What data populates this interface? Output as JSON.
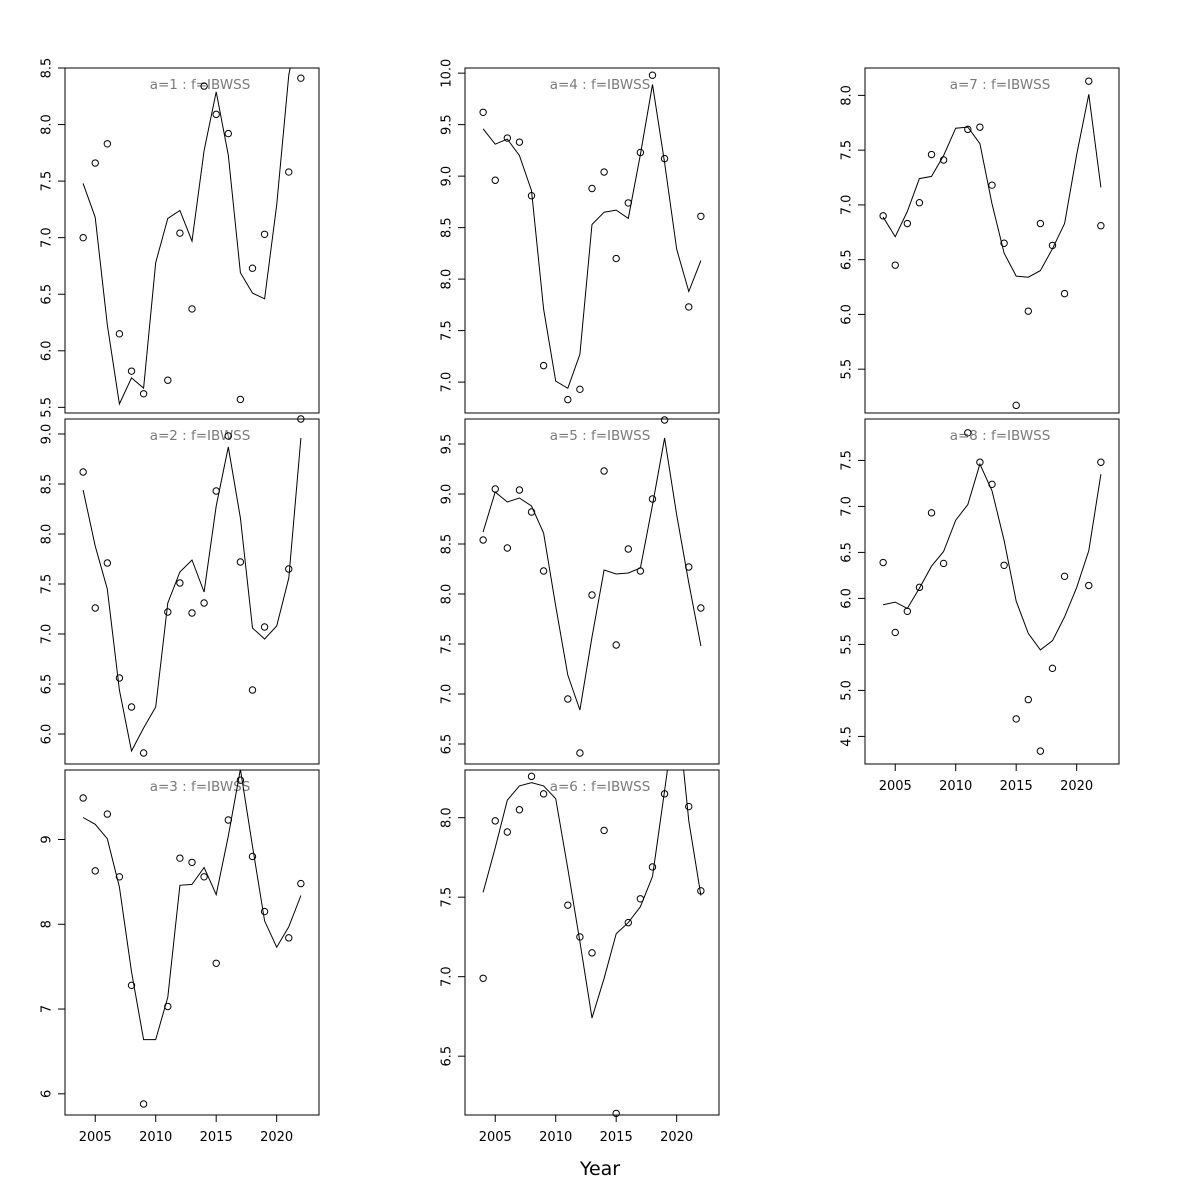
{
  "figure": {
    "xlabel": "Year"
  },
  "chart_data": [
    {
      "type": "scatter",
      "title": "a=1  :  f=IBWSS",
      "xlim": [
        2002.5,
        2023.5
      ],
      "ylim": [
        5.45,
        8.5
      ],
      "x_ticks": [],
      "y_ticks": [
        5.5,
        6.0,
        6.5,
        7.0,
        7.5,
        8.0,
        8.5
      ],
      "y_tick_labels": [
        "5.5",
        "6.0",
        "6.5",
        "7.0",
        "7.5",
        "8.0",
        "8.5"
      ],
      "x": [
        2004,
        2005,
        2006,
        2007,
        2008,
        2009,
        2010,
        2011,
        2012,
        2013,
        2014,
        2015,
        2016,
        2017,
        2018,
        2019,
        2020,
        2021,
        2022
      ],
      "points": [
        7.0,
        7.66,
        7.83,
        6.15,
        5.82,
        5.62,
        null,
        5.74,
        7.04,
        6.37,
        8.34,
        8.09,
        7.92,
        5.57,
        6.73,
        7.03,
        null,
        7.58,
        8.41
      ],
      "fitted": [
        7.48,
        7.18,
        6.23,
        5.53,
        5.76,
        5.67,
        6.78,
        7.17,
        7.24,
        6.97,
        7.77,
        8.29,
        7.73,
        6.69,
        6.51,
        6.46,
        7.29,
        8.44,
        8.98
      ]
    },
    {
      "type": "scatter",
      "title": "a=2  :  f=IBWSS",
      "xlim": [
        2002.5,
        2023.5
      ],
      "ylim": [
        5.7,
        9.15
      ],
      "x_ticks": [],
      "y_ticks": [
        6.0,
        6.5,
        7.0,
        7.5,
        8.0,
        8.5,
        9.0
      ],
      "y_tick_labels": [
        "6.0",
        "6.5",
        "7.0",
        "7.5",
        "8.0",
        "8.5",
        "9.0"
      ],
      "x": [
        2004,
        2005,
        2006,
        2007,
        2008,
        2009,
        2010,
        2011,
        2012,
        2013,
        2014,
        2015,
        2016,
        2017,
        2018,
        2019,
        2020,
        2021,
        2022
      ],
      "points": [
        8.62,
        7.26,
        7.71,
        6.56,
        6.27,
        5.81,
        null,
        7.22,
        7.51,
        7.21,
        7.31,
        8.43,
        8.98,
        7.72,
        6.44,
        7.07,
        null,
        7.65,
        9.15
      ],
      "fitted": [
        8.44,
        7.88,
        7.45,
        6.44,
        5.83,
        6.06,
        6.27,
        7.31,
        7.62,
        7.74,
        7.42,
        8.28,
        8.87,
        8.16,
        7.06,
        6.95,
        7.08,
        7.56,
        8.96
      ]
    },
    {
      "type": "scatter",
      "title": "a=3  :  f=IBWSS",
      "xlim": [
        2002.5,
        2023.5
      ],
      "ylim": [
        5.75,
        9.82
      ],
      "x_ticks": [
        2005,
        2010,
        2015,
        2020
      ],
      "y_ticks": [
        6,
        7,
        8,
        9
      ],
      "y_tick_labels": [
        "6",
        "7",
        "8",
        "9"
      ],
      "x": [
        2004,
        2005,
        2006,
        2007,
        2008,
        2009,
        2010,
        2011,
        2012,
        2013,
        2014,
        2015,
        2016,
        2017,
        2018,
        2019,
        2020,
        2021,
        2022
      ],
      "points": [
        9.49,
        8.63,
        9.3,
        8.56,
        7.28,
        5.88,
        null,
        7.03,
        8.78,
        8.73,
        8.56,
        7.54,
        9.23,
        9.7,
        8.8,
        8.15,
        null,
        7.84,
        8.48
      ],
      "fitted": [
        9.26,
        9.18,
        9.01,
        8.44,
        7.44,
        6.64,
        6.64,
        7.14,
        8.46,
        8.47,
        8.67,
        8.35,
        9.04,
        9.83,
        8.92,
        8.04,
        7.73,
        7.97,
        8.34
      ]
    },
    {
      "type": "scatter",
      "title": "a=4  :  f=IBWSS",
      "xlim": [
        2002.5,
        2023.5
      ],
      "ylim": [
        6.7,
        10.05
      ],
      "x_ticks": [],
      "y_ticks": [
        7.0,
        7.5,
        8.0,
        8.5,
        9.0,
        9.5,
        10.0
      ],
      "y_tick_labels": [
        "7.0",
        "7.5",
        "8.0",
        "8.5",
        "9.0",
        "9.5",
        "10.0"
      ],
      "x": [
        2004,
        2005,
        2006,
        2007,
        2008,
        2009,
        2010,
        2011,
        2012,
        2013,
        2014,
        2015,
        2016,
        2017,
        2018,
        2019,
        2020,
        2021,
        2022
      ],
      "points": [
        9.62,
        8.96,
        9.37,
        9.33,
        8.81,
        7.16,
        null,
        6.83,
        6.93,
        8.88,
        9.04,
        8.2,
        8.74,
        9.23,
        9.98,
        9.17,
        null,
        7.73,
        8.61
      ],
      "fitted": [
        9.46,
        9.31,
        9.36,
        9.2,
        8.86,
        7.71,
        7.01,
        6.94,
        7.27,
        8.53,
        8.65,
        8.67,
        8.59,
        9.21,
        9.89,
        9.13,
        8.29,
        7.88,
        8.18
      ]
    },
    {
      "type": "scatter",
      "title": "a=5  :  f=IBWSS",
      "xlim": [
        2002.5,
        2023.5
      ],
      "ylim": [
        6.3,
        9.75
      ],
      "x_ticks": [],
      "y_ticks": [
        6.5,
        7.0,
        7.5,
        8.0,
        8.5,
        9.0,
        9.5
      ],
      "y_tick_labels": [
        "6.5",
        "7.0",
        "7.5",
        "8.0",
        "8.5",
        "9.0",
        "9.5"
      ],
      "x": [
        2004,
        2005,
        2006,
        2007,
        2008,
        2009,
        2010,
        2011,
        2012,
        2013,
        2014,
        2015,
        2016,
        2017,
        2018,
        2019,
        2020,
        2021,
        2022
      ],
      "points": [
        8.54,
        9.05,
        8.46,
        9.04,
        8.82,
        8.23,
        null,
        6.95,
        6.41,
        7.99,
        9.23,
        7.49,
        8.45,
        8.23,
        8.95,
        9.74,
        null,
        8.27,
        7.86
      ],
      "fitted": [
        8.62,
        9.02,
        8.92,
        8.96,
        8.88,
        8.61,
        7.88,
        7.19,
        6.84,
        7.57,
        8.24,
        8.2,
        8.21,
        8.26,
        8.89,
        9.56,
        8.79,
        8.11,
        7.48
      ]
    },
    {
      "type": "scatter",
      "title": "a=6  :  f=IBWSS",
      "xlim": [
        2002.5,
        2023.5
      ],
      "ylim": [
        6.13,
        8.3
      ],
      "x_ticks": [
        2005,
        2010,
        2015,
        2020
      ],
      "y_ticks": [
        6.5,
        7.0,
        7.5,
        8.0
      ],
      "y_tick_labels": [
        "6.5",
        "7.0",
        "7.5",
        "8.0"
      ],
      "x": [
        2004,
        2005,
        2006,
        2007,
        2008,
        2009,
        2010,
        2011,
        2012,
        2013,
        2014,
        2015,
        2016,
        2017,
        2018,
        2019,
        2020,
        2021,
        2022
      ],
      "points": [
        6.99,
        7.98,
        7.91,
        8.05,
        8.26,
        8.15,
        null,
        7.45,
        7.25,
        7.15,
        7.92,
        6.14,
        7.34,
        7.49,
        7.69,
        8.15,
        null,
        8.07,
        7.54
      ],
      "fitted": [
        7.53,
        7.81,
        8.11,
        8.2,
        8.22,
        8.2,
        8.12,
        7.68,
        7.22,
        6.74,
        6.99,
        7.27,
        7.34,
        7.44,
        7.63,
        8.17,
        8.73,
        7.98,
        7.51
      ]
    },
    {
      "type": "scatter",
      "title": "a=7  :  f=IBWSS",
      "xlim": [
        2002.5,
        2023.5
      ],
      "ylim": [
        5.1,
        8.25
      ],
      "x_ticks": [],
      "y_ticks": [
        5.5,
        6.0,
        6.5,
        7.0,
        7.5,
        8.0
      ],
      "y_tick_labels": [
        "5.5",
        "6.0",
        "6.5",
        "7.0",
        "7.5",
        "8.0"
      ],
      "x": [
        2004,
        2005,
        2006,
        2007,
        2008,
        2009,
        2010,
        2011,
        2012,
        2013,
        2014,
        2015,
        2016,
        2017,
        2018,
        2019,
        2020,
        2021,
        2022
      ],
      "points": [
        6.9,
        6.45,
        6.83,
        7.02,
        7.46,
        7.41,
        null,
        7.69,
        7.71,
        7.18,
        6.65,
        5.17,
        6.03,
        6.83,
        6.63,
        6.19,
        null,
        8.13,
        6.81
      ],
      "fitted": [
        6.89,
        6.71,
        6.94,
        7.24,
        7.26,
        7.45,
        7.7,
        7.71,
        7.56,
        7.01,
        6.56,
        6.35,
        6.34,
        6.4,
        6.6,
        6.83,
        7.46,
        8.01,
        7.16
      ]
    },
    {
      "type": "scatter",
      "title": "a=8  :  f=IBWSS",
      "xlim": [
        2002.5,
        2023.5
      ],
      "ylim": [
        4.2,
        7.95
      ],
      "x_ticks": [
        2005,
        2010,
        2015,
        2020
      ],
      "y_ticks": [
        4.5,
        5.0,
        5.5,
        6.0,
        6.5,
        7.0,
        7.5
      ],
      "y_tick_labels": [
        "4.5",
        "5.0",
        "5.5",
        "6.0",
        "6.5",
        "7.0",
        "7.5"
      ],
      "x": [
        2004,
        2005,
        2006,
        2007,
        2008,
        2009,
        2010,
        2011,
        2012,
        2013,
        2014,
        2015,
        2016,
        2017,
        2018,
        2019,
        2020,
        2021,
        2022
      ],
      "points": [
        6.39,
        5.63,
        5.86,
        6.12,
        6.93,
        6.38,
        null,
        7.8,
        7.48,
        7.24,
        6.36,
        4.69,
        4.9,
        4.34,
        5.24,
        6.24,
        null,
        6.14,
        7.48
      ],
      "fitted": [
        5.93,
        5.96,
        5.89,
        6.11,
        6.35,
        6.51,
        6.85,
        7.02,
        7.46,
        7.17,
        6.63,
        5.97,
        5.62,
        5.44,
        5.54,
        5.8,
        6.12,
        6.52,
        7.35
      ]
    }
  ]
}
